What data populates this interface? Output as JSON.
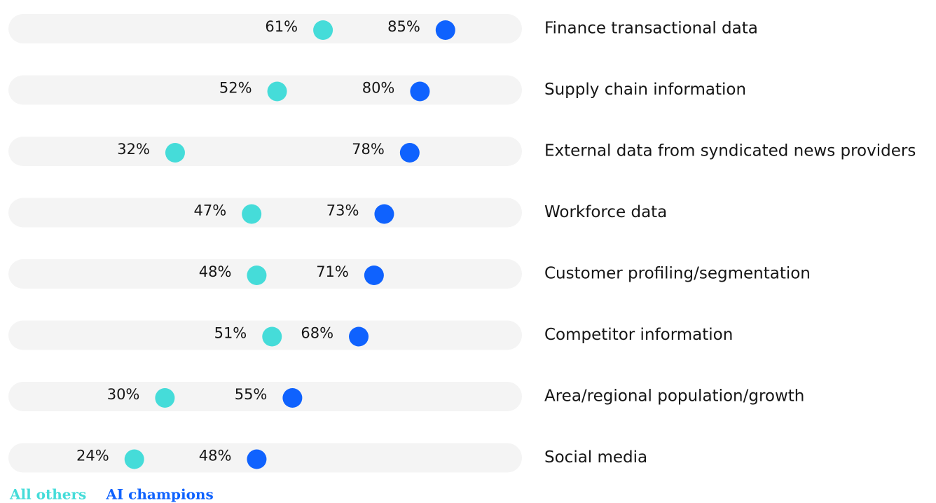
{
  "chart_data": {
    "type": "dot",
    "categories": [
      "Finance transactional data",
      "Supply chain information",
      "External data from syndicated news providers",
      "Workforce data",
      "Customer profiling/segmentation",
      "Competitor information",
      "Area/regional population/growth",
      "Social media"
    ],
    "series": [
      {
        "name": "All others",
        "color": "#45dcd9",
        "values": [
          61,
          52,
          32,
          47,
          48,
          51,
          30,
          24
        ],
        "value_labels": [
          "61%",
          "52%",
          "32%",
          "47%",
          "48%",
          "51%",
          "30%",
          "24%"
        ]
      },
      {
        "name": "AI champions",
        "color": "#0f62fe",
        "values": [
          85,
          80,
          78,
          73,
          71,
          68,
          55,
          48
        ],
        "value_labels": [
          "85%",
          "80%",
          "78%",
          "73%",
          "71%",
          "68%",
          "55%",
          "48%"
        ]
      }
    ],
    "xlim": [
      0,
      100
    ]
  }
}
